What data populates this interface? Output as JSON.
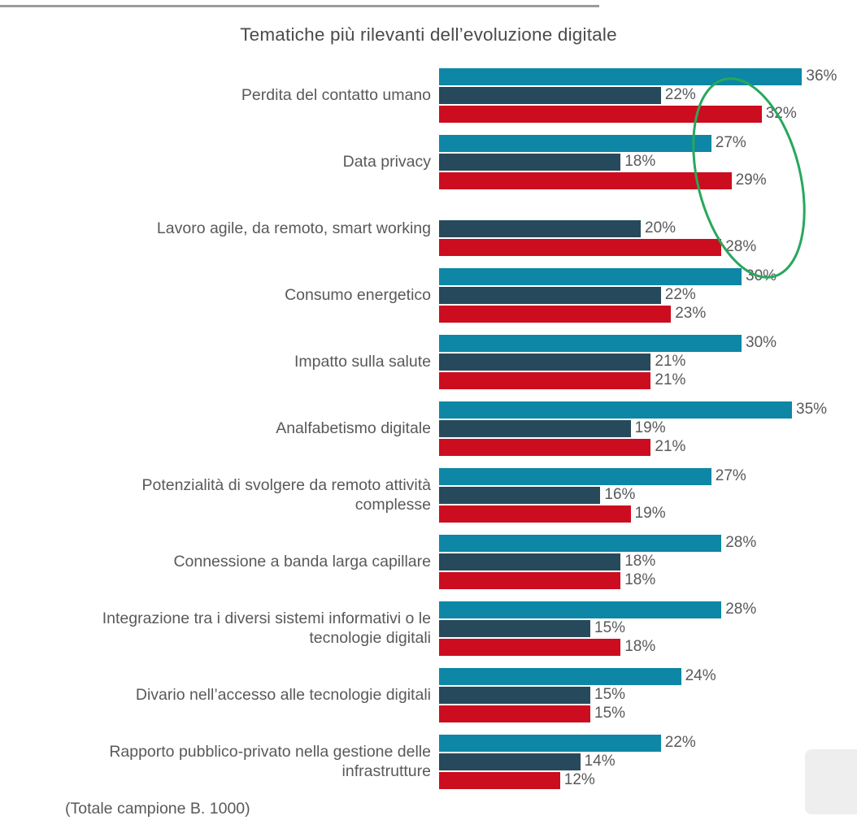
{
  "chart_data": {
    "type": "bar",
    "orientation": "horizontal",
    "title": "Tematiche più rilevanti dell’evoluzione digitale",
    "note": "(Totale campione B. 1000)",
    "value_suffix": "%",
    "xlim": [
      0,
      40
    ],
    "grid": false,
    "legend": "none",
    "categories": [
      "Perdita del contatto umano",
      "Data privacy",
      "Lavoro agile, da remoto, smart working",
      "Consumo energetico",
      "Impatto sulla salute",
      "Analfabetismo digitale",
      "Potenzialità di svolgere da remoto attività complesse",
      "Connessione a banda larga capillare",
      "Integrazione tra i diversi sistemi informativi o le tecnologie digitali",
      "Divario nell’accesso alle tecnologie digitali",
      "Rapporto pubblico-privato nella gestione delle infrastrutture"
    ],
    "series": [
      {
        "name": "teal",
        "color": "#0d87a5",
        "values": [
          36,
          27,
          null,
          30,
          30,
          35,
          27,
          28,
          28,
          24,
          22
        ]
      },
      {
        "name": "navy",
        "color": "#264a5b",
        "values": [
          22,
          18,
          20,
          22,
          21,
          19,
          16,
          18,
          15,
          15,
          14
        ]
      },
      {
        "name": "red",
        "color": "#cb0d1f",
        "values": [
          32,
          29,
          28,
          23,
          21,
          21,
          19,
          18,
          18,
          15,
          12
        ]
      }
    ],
    "annotation": {
      "type": "ellipse",
      "color": "#27a85c",
      "circled_values": [
        "32%",
        "29%",
        "28%"
      ]
    }
  },
  "style": {
    "text_color": "#58595b",
    "title_color": "#4a4b4d",
    "rule_color": "#9b9b9b",
    "watermark_color": "#eeeeee",
    "background": "#ffffff"
  }
}
